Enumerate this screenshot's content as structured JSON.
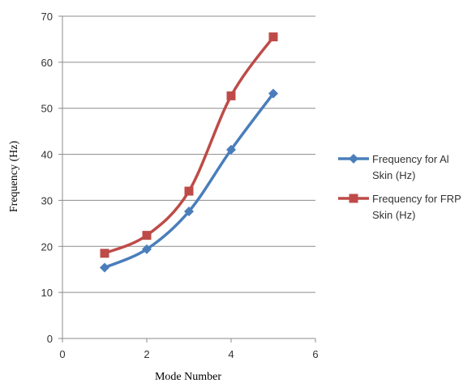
{
  "chart_data": {
    "type": "line",
    "xlabel": "Mode Number",
    "ylabel": "Frequency (Hz)",
    "xlim": [
      0,
      6
    ],
    "ylim": [
      0,
      70
    ],
    "xticks": [
      "0",
      "2",
      "4",
      "6"
    ],
    "yticks": [
      "0",
      "10",
      "20",
      "30",
      "40",
      "50",
      "60",
      "70"
    ],
    "grid": "horizontal",
    "legend_position": "right",
    "x": [
      1,
      2,
      3,
      4,
      5
    ],
    "series": [
      {
        "name": "Frequency for Al Skin (Hz)",
        "name_lines": [
          "Frequency for Al",
          "Skin (Hz)"
        ],
        "marker": "diamond",
        "color": "#4a7ebb",
        "values": [
          15.4,
          19.4,
          27.6,
          41.0,
          53.2
        ]
      },
      {
        "name": "Frequency for FRP Skin (Hz)",
        "name_lines": [
          "Frequency for FRP",
          "Skin (Hz)"
        ],
        "marker": "square",
        "color": "#be4b48",
        "values": [
          18.5,
          22.4,
          32.0,
          52.7,
          65.5
        ]
      }
    ]
  }
}
